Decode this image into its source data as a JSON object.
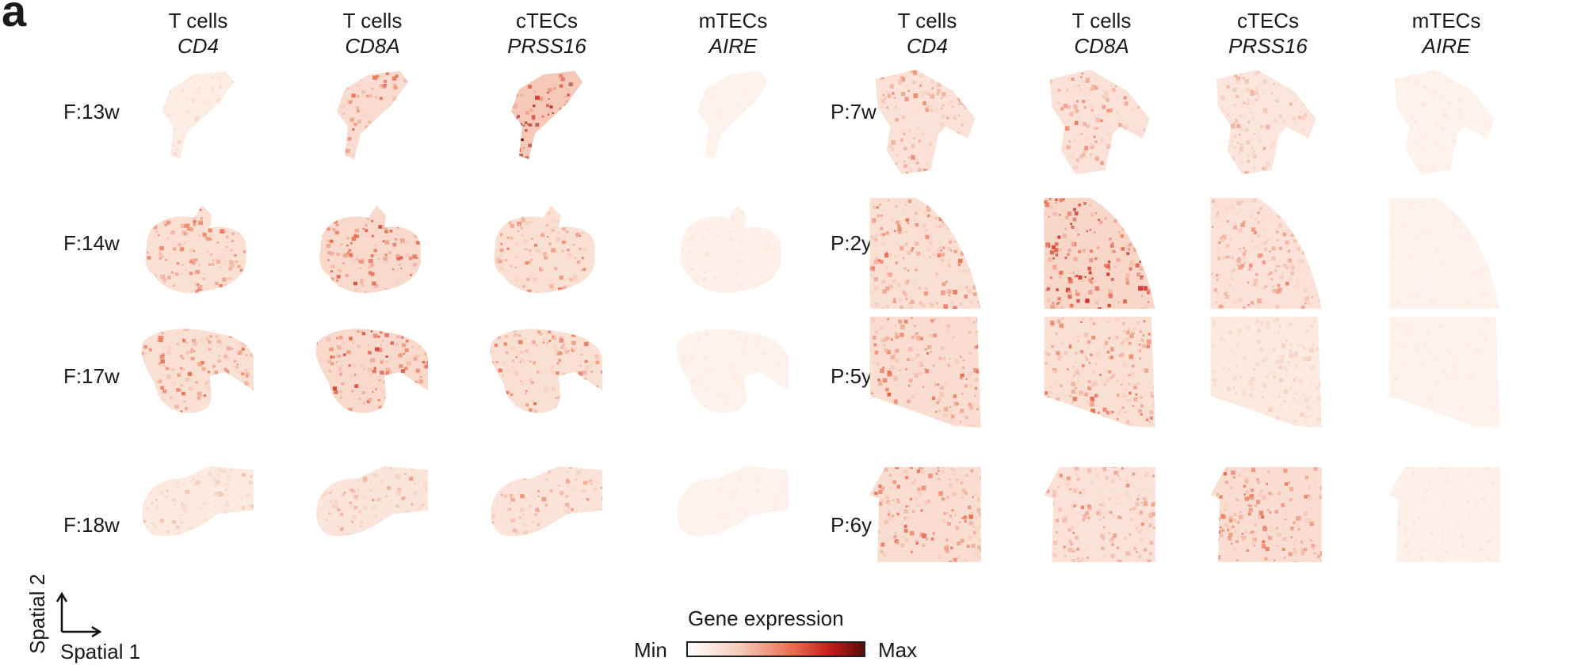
{
  "panel_letter": "a",
  "columns": [
    {
      "cell_type": "T cells",
      "gene": "CD4"
    },
    {
      "cell_type": "T cells",
      "gene": "CD8A"
    },
    {
      "cell_type": "cTECs",
      "gene": "PRSS16"
    },
    {
      "cell_type": "mTECs",
      "gene": "AIRE"
    },
    {
      "cell_type": "T cells",
      "gene": "CD4"
    },
    {
      "cell_type": "T cells",
      "gene": "CD8A"
    },
    {
      "cell_type": "cTECs",
      "gene": "PRSS16"
    },
    {
      "cell_type": "mTECs",
      "gene": "AIRE"
    }
  ],
  "fetal_rows": [
    "F:13w",
    "F:14w",
    "F:17w",
    "F:18w"
  ],
  "postnatal_rows": [
    "P:7w",
    "P:2y",
    "P:5y",
    "P:6y"
  ],
  "expression_levels": {
    "fetal": [
      [
        0.15,
        0.45,
        0.75,
        0.05
      ],
      [
        0.4,
        0.5,
        0.4,
        0.08
      ],
      [
        0.4,
        0.5,
        0.4,
        0.06
      ],
      [
        0.22,
        0.3,
        0.32,
        0.05
      ]
    ],
    "postnatal": [
      [
        0.35,
        0.35,
        0.28,
        0.06
      ],
      [
        0.4,
        0.55,
        0.35,
        0.05
      ],
      [
        0.42,
        0.4,
        0.2,
        0.05
      ],
      [
        0.42,
        0.35,
        0.42,
        0.08
      ]
    ]
  },
  "axes": {
    "y_label": "Spatial 2",
    "x_label": "Spatial 1"
  },
  "legend": {
    "title": "Gene expression",
    "min_label": "Min",
    "max_label": "Max",
    "colors": [
      "#ffffff",
      "#f5c9b8",
      "#e96b4d",
      "#c81e1e",
      "#5a0a0a"
    ]
  }
}
